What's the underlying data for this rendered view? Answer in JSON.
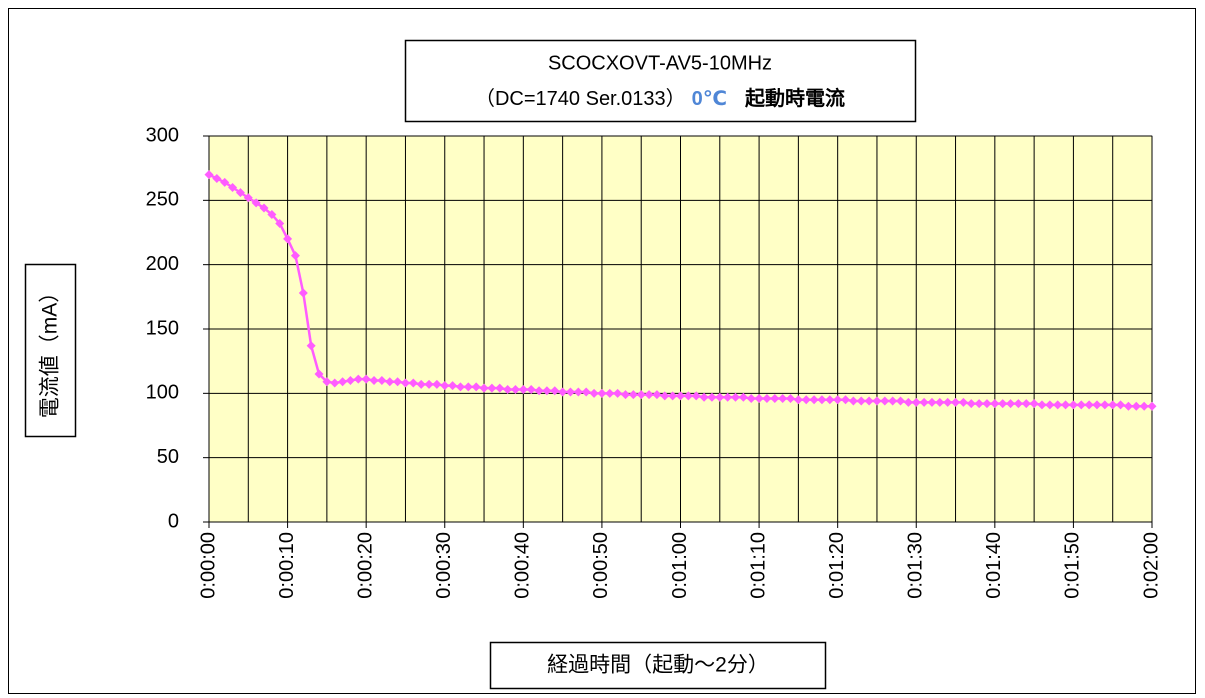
{
  "chart_data": {
    "type": "line",
    "title": "SCOCXOVT-AV5-10MHz",
    "subtitle": [
      "（DC=1740 Ser.0133）",
      "0℃",
      "起動時電流"
    ],
    "ylabel": "電流値（mA）",
    "xlabel": "経過時間（起動～2分）",
    "color": "#ff5cff",
    "x": [
      0,
      1,
      2,
      3,
      4,
      5,
      6,
      7,
      8,
      9,
      10,
      11,
      12,
      13,
      14,
      15,
      16,
      17,
      18,
      19,
      20,
      21,
      22,
      23,
      24,
      25,
      26,
      27,
      28,
      29,
      30,
      31,
      32,
      33,
      34,
      35,
      36,
      37,
      38,
      39,
      40,
      41,
      42,
      43,
      44,
      45,
      46,
      47,
      48,
      49,
      50,
      51,
      52,
      53,
      54,
      55,
      56,
      57,
      58,
      59,
      60,
      61,
      62,
      63,
      64,
      65,
      66,
      67,
      68,
      69,
      70,
      71,
      72,
      73,
      74,
      75,
      76,
      77,
      78,
      79,
      80,
      81,
      82,
      83,
      84,
      85,
      86,
      87,
      88,
      89,
      90,
      91,
      92,
      93,
      94,
      95,
      96,
      97,
      98,
      99,
      100,
      101,
      102,
      103,
      104,
      105,
      106,
      107,
      108,
      109,
      110,
      111,
      112,
      113,
      114,
      115,
      116,
      117,
      118,
      119,
      120
    ],
    "values": [
      270,
      267,
      264,
      260,
      256,
      252,
      248,
      244,
      239,
      232,
      220,
      207,
      178,
      137,
      115,
      109,
      108,
      109,
      110,
      111,
      111,
      110,
      110,
      109,
      109,
      108,
      108,
      107,
      107,
      107,
      106,
      106,
      105,
      105,
      105,
      104,
      104,
      104,
      103,
      103,
      103,
      103,
      102,
      102,
      102,
      101,
      101,
      101,
      101,
      100,
      100,
      100,
      100,
      99,
      99,
      99,
      99,
      99,
      98,
      98,
      98,
      98,
      98,
      97,
      97,
      97,
      97,
      97,
      97,
      96,
      96,
      96,
      96,
      96,
      96,
      95,
      95,
      95,
      95,
      95,
      95,
      95,
      94,
      94,
      94,
      94,
      94,
      94,
      94,
      93,
      93,
      93,
      93,
      93,
      93,
      93,
      93,
      92,
      92,
      92,
      92,
      92,
      92,
      92,
      92,
      92,
      91,
      91,
      91,
      91,
      91,
      91,
      91,
      91,
      91,
      91,
      91,
      90,
      90,
      90,
      90
    ],
    "xlim": [
      0,
      120
    ],
    "xticks": [
      {
        "value": 0,
        "label": "0:00:00"
      },
      {
        "value": 10,
        "label": "0:00:10"
      },
      {
        "value": 20,
        "label": "0:00:20"
      },
      {
        "value": 30,
        "label": "0:00:30"
      },
      {
        "value": 40,
        "label": "0:00:40"
      },
      {
        "value": 50,
        "label": "0:00:50"
      },
      {
        "value": 60,
        "label": "0:01:00"
      },
      {
        "value": 70,
        "label": "0:01:10"
      },
      {
        "value": 80,
        "label": "0:01:20"
      },
      {
        "value": 90,
        "label": "0:01:30"
      },
      {
        "value": 100,
        "label": "0:01:40"
      },
      {
        "value": 110,
        "label": "0:01:50"
      },
      {
        "value": 120,
        "label": "0:02:00"
      }
    ],
    "xminorticks": [
      5,
      15,
      25,
      35,
      45,
      55,
      65,
      75,
      85,
      95,
      105,
      115
    ],
    "ylim": [
      0,
      300
    ],
    "yticks": [
      0,
      50,
      100,
      150,
      200,
      250,
      300
    ],
    "grid": true
  }
}
